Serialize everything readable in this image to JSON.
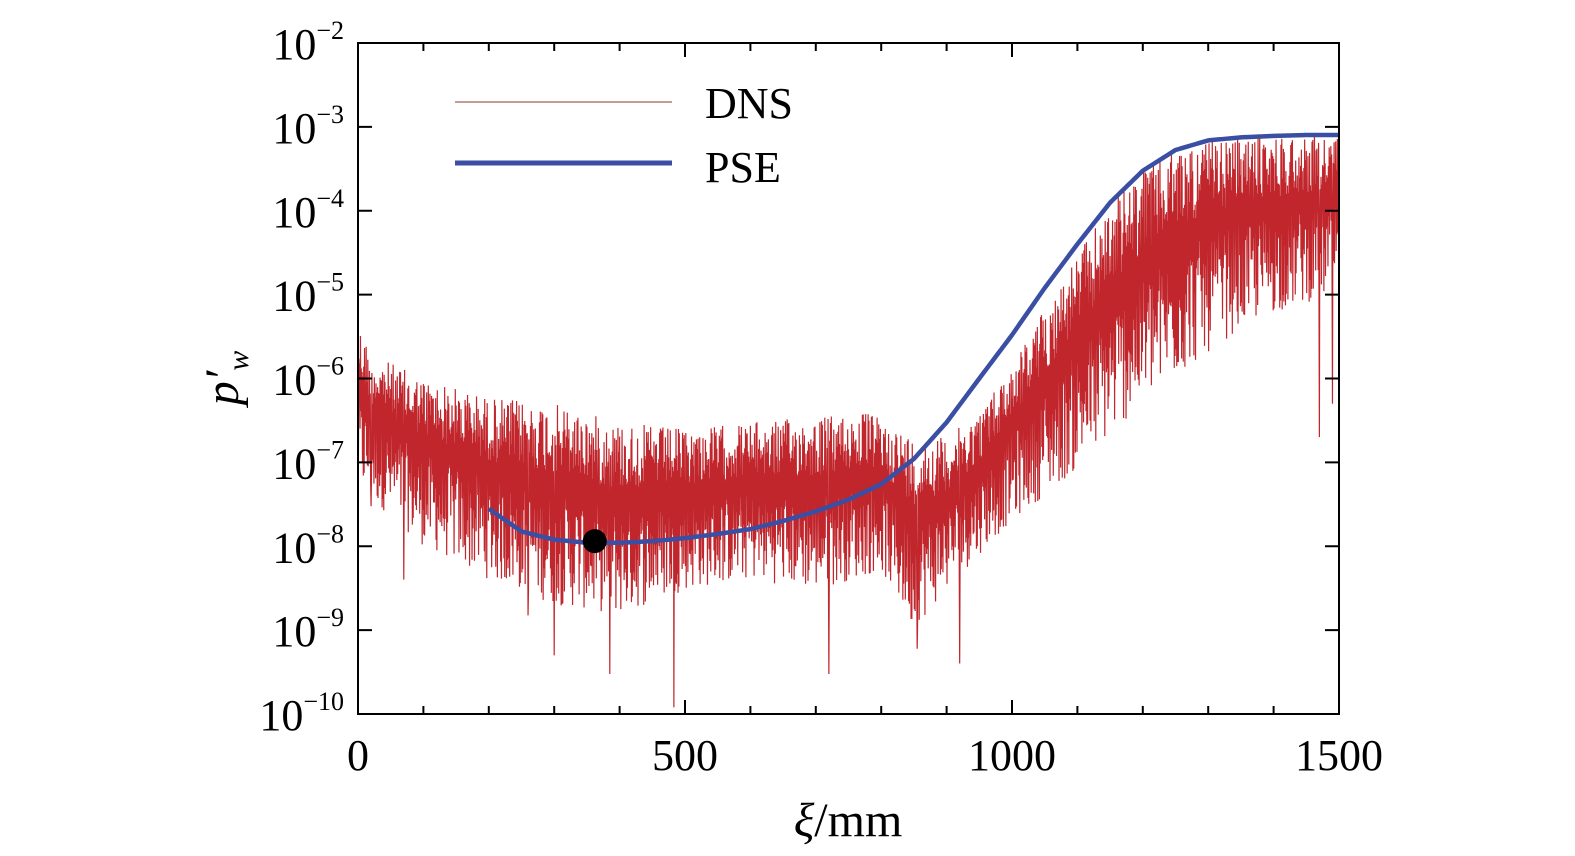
{
  "chart_data": {
    "type": "line",
    "title": "",
    "xlabel": {
      "symbol": "ξ",
      "unit": "/mm"
    },
    "ylabel": {
      "symbol": "p′",
      "subscript": "w"
    },
    "xlim": [
      0,
      1500
    ],
    "ylim": [
      1e-10,
      0.01
    ],
    "yscale": "log",
    "xticks": [
      0,
      500,
      1000,
      1500
    ],
    "xtick_labels": [
      "0",
      "500",
      "1000",
      "1500"
    ],
    "yticks": [
      {
        "base": "10",
        "exp": "−2",
        "value": 0.01
      },
      {
        "base": "10",
        "exp": "−3",
        "value": 0.001
      },
      {
        "base": "10",
        "exp": "−4",
        "value": 0.0001
      },
      {
        "base": "10",
        "exp": "−5",
        "value": 1e-05
      },
      {
        "base": "10",
        "exp": "−6",
        "value": 1e-06
      },
      {
        "base": "10",
        "exp": "−7",
        "value": 1e-07
      },
      {
        "base": "10",
        "exp": "−8",
        "value": 1e-08
      },
      {
        "base": "10",
        "exp": "−9",
        "value": 1e-09
      },
      {
        "base": "10",
        "exp": "−10",
        "value": 1e-10
      }
    ],
    "grid": false,
    "legend_position": "top-left",
    "series": [
      {
        "name": "DNS",
        "color": "#c0262c",
        "oscillating": true,
        "envelope_upper": {
          "x": [
            0,
            20,
            100,
            200,
            300,
            400,
            500,
            600,
            700,
            780,
            850,
            900,
            950,
            1000,
            1050,
            1100,
            1150,
            1200,
            1250,
            1300,
            1350,
            1400,
            1450,
            1500
          ],
          "y": [
            5e-06,
            2e-06,
            1e-06,
            6e-07,
            5e-07,
            3e-07,
            2.5e-07,
            3e-07,
            3.5e-07,
            4e-07,
            2e-07,
            2e-07,
            4e-07,
            1.5e-06,
            7e-06,
            3e-05,
            0.00012,
            0.0003,
            0.00055,
            0.0007,
            0.00075,
            0.0008,
            0.0008,
            0.0008
          ]
        },
        "envelope_lower": {
          "x": [
            0,
            100,
            200,
            300,
            400,
            500,
            600,
            700,
            800,
            850,
            900,
            950,
            1000,
            1050,
            1100,
            1150,
            1200,
            1250,
            1300,
            1350,
            1400,
            1450,
            1500
          ],
          "y": [
            5e-08,
            1e-08,
            4e-09,
            2e-09,
            1.5e-09,
            3e-09,
            4e-09,
            3e-09,
            5e-09,
            1e-09,
            3e-09,
            8e-09,
            2e-08,
            4e-08,
            8e-08,
            2e-07,
            5e-07,
            1e-06,
            2e-06,
            4e-06,
            6e-06,
            8e-06,
            1e-05
          ]
        },
        "spikes": [
          {
            "x": 20,
            "y": 3e-08
          },
          {
            "x": 70,
            "y": 4e-09
          },
          {
            "x": 260,
            "y": 1.5e-09
          },
          {
            "x": 300,
            "y": 5e-10
          },
          {
            "x": 385,
            "y": 3e-10
          },
          {
            "x": 483,
            "y": 1.2e-10
          },
          {
            "x": 720,
            "y": 3e-10
          },
          {
            "x": 855,
            "y": 6e-10
          },
          {
            "x": 920,
            "y": 4e-10
          },
          {
            "x": 1470,
            "y": 2e-07
          },
          {
            "x": 1490,
            "y": 5e-07
          }
        ]
      },
      {
        "name": "PSE",
        "color": "#3a4fa3",
        "x": [
          200,
          250,
          300,
          350,
          400,
          450,
          500,
          550,
          600,
          650,
          700,
          750,
          800,
          850,
          900,
          950,
          1000,
          1050,
          1100,
          1150,
          1200,
          1250,
          1300,
          1350,
          1400,
          1450,
          1500
        ],
        "y": [
          2.8e-08,
          1.5e-08,
          1.2e-08,
          1.1e-08,
          1.1e-08,
          1.15e-08,
          1.25e-08,
          1.4e-08,
          1.6e-08,
          2e-08,
          2.6e-08,
          3.6e-08,
          5.5e-08,
          1.1e-07,
          3e-07,
          1e-06,
          3.3e-06,
          1.2e-05,
          4e-05,
          0.000125,
          0.0003,
          0.00053,
          0.00069,
          0.00075,
          0.00078,
          0.0008,
          0.0008
        ]
      }
    ],
    "marker": {
      "x": 362,
      "y": 1.15e-08,
      "color": "#000000"
    }
  }
}
